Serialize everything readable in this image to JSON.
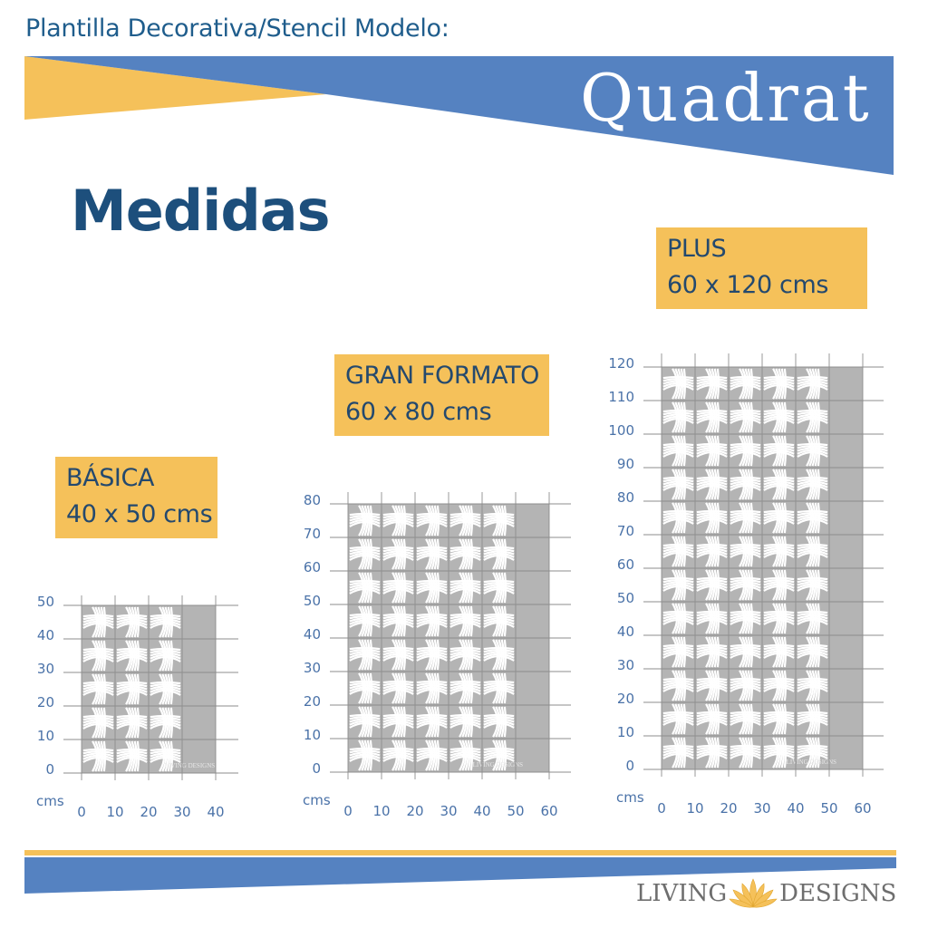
{
  "header": {
    "title": "Plantilla Decorativa/Stencil Modelo:",
    "model_name": "Quadrat"
  },
  "heading": "Medidas",
  "sizes": [
    {
      "name": "BÁSICA",
      "dimensions": "40 x 50 cms",
      "width_cm": 40,
      "height_cm": 50,
      "x_ticks": [
        "0",
        "10",
        "20",
        "30",
        "40"
      ],
      "y_ticks": [
        "0",
        "10",
        "20",
        "30",
        "40",
        "50"
      ],
      "unit": "cms"
    },
    {
      "name": "GRAN FORMATO",
      "dimensions": "60 x 80 cms",
      "width_cm": 60,
      "height_cm": 80,
      "x_ticks": [
        "0",
        "10",
        "20",
        "30",
        "40",
        "50",
        "60"
      ],
      "y_ticks": [
        "0",
        "10",
        "20",
        "30",
        "40",
        "50",
        "60",
        "70",
        "80"
      ],
      "unit": "cms"
    },
    {
      "name": "PLUS",
      "dimensions": "60 x 120 cms",
      "width_cm": 60,
      "height_cm": 120,
      "x_ticks": [
        "0",
        "10",
        "20",
        "30",
        "40",
        "50",
        "60"
      ],
      "y_ticks": [
        "0",
        "10",
        "20",
        "30",
        "40",
        "50",
        "60",
        "70",
        "80",
        "90",
        "100",
        "110",
        "120"
      ],
      "unit": "cms"
    }
  ],
  "watermark": {
    "left": "LIVING",
    "right": "DESIGNS"
  },
  "brand": {
    "left": "LIVING",
    "right": "DESIGNS",
    "logo_icon": "lotus-icon"
  },
  "colors": {
    "blue": "#5582c1",
    "yellow": "#f5c15a",
    "navy": "#1d4f7c",
    "stencil_gray": "#b4b4b4",
    "grid_gray": "#8d8d8d",
    "tick_blue": "#4a72a8"
  }
}
